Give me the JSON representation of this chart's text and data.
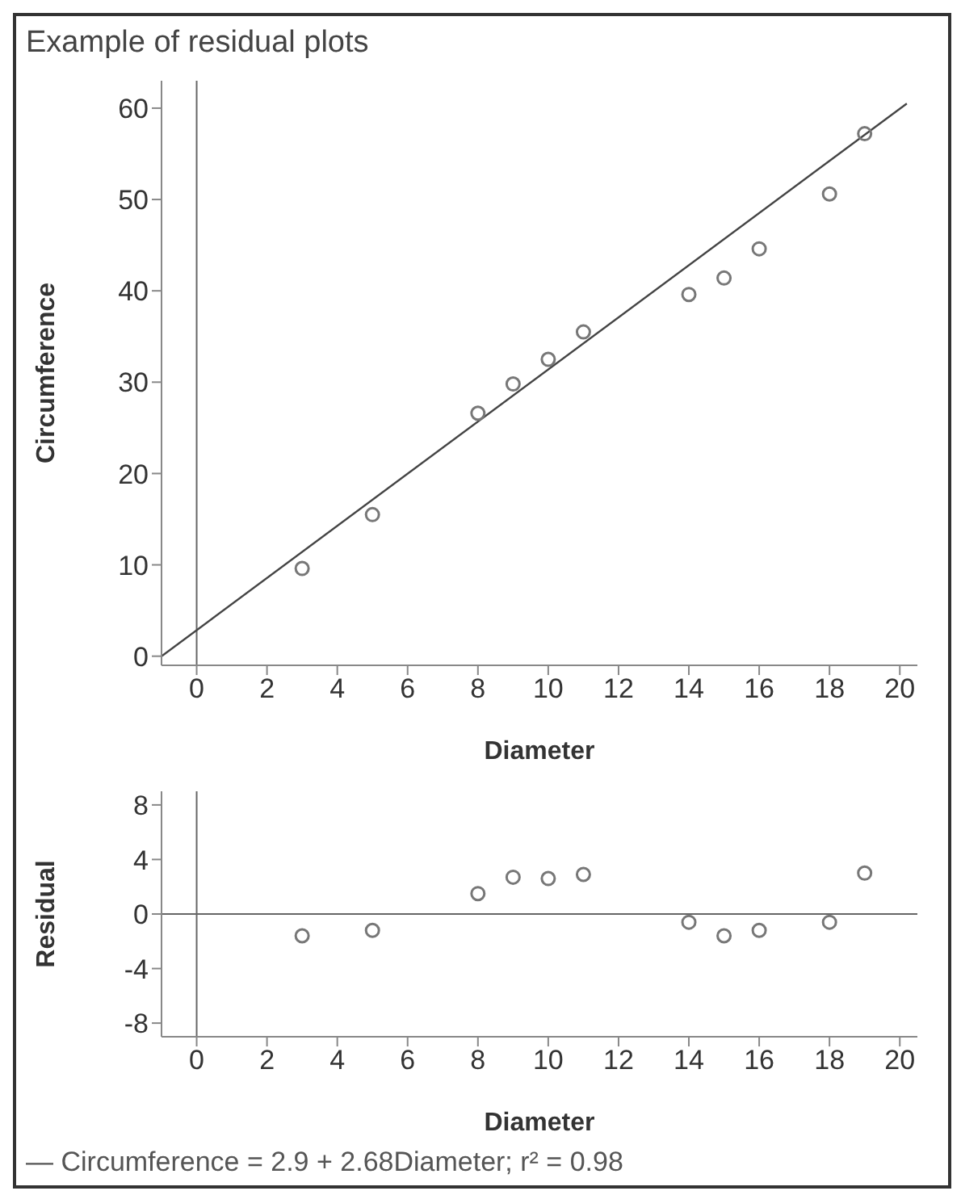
{
  "chart_data": [
    {
      "type": "scatter",
      "title": "Example of residual plots",
      "xlabel": "Diameter",
      "ylabel": "Circumference",
      "xlim": [
        -1,
        20.5
      ],
      "ylim": [
        -1,
        63
      ],
      "xticks": [
        0,
        2,
        4,
        6,
        8,
        10,
        12,
        14,
        16,
        18,
        20
      ],
      "yticks": [
        0,
        10,
        20,
        30,
        40,
        50,
        60
      ],
      "grid": false,
      "marker": "circle",
      "ref_lines": [
        {
          "axis": "x",
          "value": 0
        }
      ],
      "series": [
        {
          "color": "#777777",
          "x": [
            3,
            5,
            8,
            9,
            10,
            11,
            14,
            15,
            16,
            18,
            19
          ],
          "values": [
            9.6,
            15.5,
            26.6,
            29.8,
            32.5,
            35.5,
            39.6,
            41.4,
            44.6,
            50.6,
            57.2
          ]
        },
        {
          "type": "line",
          "marker": "none",
          "color": "#444444",
          "x": [
            -1,
            20.2
          ],
          "values": [
            0,
            60.5
          ]
        }
      ]
    },
    {
      "type": "scatter",
      "xlabel": "Diameter",
      "ylabel": "Residual",
      "xlim": [
        -1,
        20.5
      ],
      "ylim": [
        -9,
        9
      ],
      "xticks": [
        0,
        2,
        4,
        6,
        8,
        10,
        12,
        14,
        16,
        18,
        20
      ],
      "yticks": [
        -8,
        -4,
        0,
        4,
        8
      ],
      "grid": false,
      "marker": "circle",
      "ref_lines": [
        {
          "axis": "x",
          "value": 0
        },
        {
          "axis": "y",
          "value": 0
        }
      ],
      "annotations": [
        "— Circumference = 2.9 + 2.68Diameter; r² = 0.98"
      ],
      "series": [
        {
          "color": "#777777",
          "x": [
            3,
            5,
            8,
            9,
            10,
            11,
            14,
            15,
            16,
            18,
            19
          ],
          "values": [
            -1.6,
            -1.2,
            1.5,
            2.7,
            2.6,
            2.9,
            -0.6,
            -1.6,
            -1.2,
            -0.6,
            3.0
          ]
        }
      ]
    }
  ]
}
